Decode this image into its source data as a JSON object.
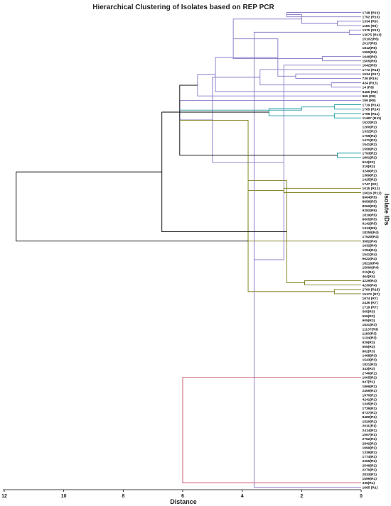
{
  "chart_data": {
    "type": "dendrogram",
    "title": "Hierarchical Clustering of Isolates based on REP PCR",
    "xlabel": "Distance",
    "ylabel": "Isolate IDs",
    "xlim": [
      12,
      0
    ],
    "xticks": [
      12,
      10,
      8,
      6,
      4,
      2,
      0
    ],
    "orientation": "left",
    "colors": {
      "purple": "#8878c8",
      "teal": "#1a9aa0",
      "olive": "#7a7a18",
      "red": "#c85068",
      "black": "#000000"
    },
    "leaves": [
      "1748 (R10)",
      "1792 (R10)",
      "1334 (R9)",
      "1155 (R9)",
      "1375 (R13)",
      "13075 (R13)",
      "15102(R6)",
      "2017(R6)",
      "1812(R6)",
      "1550(R6)",
      "1946(R6)",
      "1505(R6)",
      "1642(R6)",
      "1772 (R18)",
      "1534 (R17)",
      "736 (R16)",
      "434 (R15)",
      "14 (R8)",
      "9465 (R8)",
      "965 (R8)",
      "199 (R8)",
      "1719 (R14)",
      "1765 (R14)",
      "1795 (R11)",
      "11487 (R11)",
      "1522(R2)",
      "1260(R2)",
      "1332(R2)",
      "1759(R2)",
      "1471(R2)",
      "1541(R2)",
      "1556(R2)",
      "1793(R2)",
      "1861(R2)",
      "924(R2)",
      "319(R2)",
      "3249(R2)",
      "1389(R2)",
      "1425(R2)",
      "1747 (R2)",
      "1015 (R12)",
      "10616 (R12)",
      "8964(R5)",
      "8656(R5)",
      "8060(R5)",
      "9282(R5)",
      "1819(R5)",
      "8605(R5)",
      "9142(R5)",
      "1313(R5)",
      "18258(R4)",
      "17528(R4)",
      "3582(R4)",
      "1632(R4)",
      "1284(R4)",
      "1541(R4)",
      "9622(R4)",
      "18218(R4)",
      "15006(R4)",
      "211(R4)",
      "464(R4)",
      "4229(R4)",
      "4230(R4)",
      "2760 (R18)",
      "15172 (R7)",
      "1674 (R7)",
      "2439 (R7)",
      "1718 (R7)",
      "505(R3)",
      "556(R3)",
      "905(R3)",
      "1831(R3)",
      "11137(R3)",
      "1160(R3)",
      "1134(R3)",
      "929(R3)",
      "555(R3)",
      "862(R3)",
      "1468(R3)",
      "1543(R3)",
      "1821(R3)",
      "343(R3)",
      "2746(R1)",
      "1005(R1)",
      "947(R1)",
      "1866(R1)",
      "2459(R1)",
      "1970(R1)",
      "4241(R1)",
      "1345(R1)",
      "1739(R1)",
      "8737(R1)",
      "8480(R1)",
      "1520(R1)",
      "2011(R1)",
      "2414(R1)",
      "1557(R1)",
      "2752(R1)",
      "2842(R1)",
      "1999(R1)",
      "1339(R1)",
      "1774(R1)",
      "2256(R1)",
      "2549(R1)",
      "2279(R1)",
      "2833(R1)",
      "1599(R1)",
      "335(R1)",
      "1665 (R1)"
    ],
    "links": [
      {
        "left": 0,
        "right": 1,
        "distance": 2.5,
        "color": "purple"
      },
      {
        "left": 2,
        "right": 3,
        "distance": 0.8,
        "color": "purple"
      },
      {
        "left": 4,
        "right": 5,
        "distance": 0.4,
        "color": "purple"
      },
      {
        "left": 109,
        "right": 110,
        "distance": 2.0,
        "color": "purple"
      },
      {
        "left": 111,
        "right": 108,
        "distance": 3.6,
        "color": "purple"
      },
      {
        "left": 10,
        "right": 11,
        "distance": 1.3,
        "color": "purple"
      },
      {
        "left": 12,
        "right": 113,
        "distance": 2.6,
        "color": "purple"
      },
      {
        "left": 112,
        "right": 114,
        "distance": 4.3,
        "color": "purple"
      },
      {
        "left": 14,
        "right": 15,
        "distance": 2.2,
        "color": "purple"
      },
      {
        "left": 16,
        "right": 17,
        "distance": 1.0,
        "color": "purple"
      },
      {
        "left": 116,
        "right": 117,
        "distance": 2.8,
        "color": "purple"
      },
      {
        "left": 13,
        "right": 118,
        "distance": 3.4,
        "color": "purple"
      },
      {
        "left": 119,
        "right": 18,
        "distance": 4.9,
        "color": "purple"
      },
      {
        "left": 115,
        "right": 120,
        "distance": 5.0,
        "color": "purple"
      },
      {
        "left": 121,
        "right": 19,
        "distance": 5.5,
        "color": "purple"
      },
      {
        "left": 122,
        "right": 20,
        "distance": 6.1,
        "color": "purple"
      },
      {
        "left": 21,
        "right": 22,
        "distance": 0.9,
        "color": "teal"
      },
      {
        "left": 23,
        "right": 24,
        "distance": 0.9,
        "color": "teal"
      },
      {
        "left": 124,
        "right": 125,
        "distance": 2.0,
        "color": "teal"
      },
      {
        "left": 32,
        "right": 33,
        "distance": 0.8,
        "color": "teal"
      },
      {
        "left": 126,
        "right": 127,
        "distance": 3.1,
        "color": "teal"
      },
      {
        "left": 123,
        "right": 128,
        "distance": 6.1,
        "color": "black"
      },
      {
        "left": 40,
        "right": 41,
        "distance": 2.6,
        "color": "olive"
      },
      {
        "left": 130,
        "right": 52,
        "distance": 3.8,
        "color": "olive"
      },
      {
        "left": 61,
        "right": 62,
        "distance": 1.9,
        "color": "olive"
      },
      {
        "left": 63,
        "right": 64,
        "distance": 0.9,
        "color": "olive"
      },
      {
        "left": 132,
        "right": 133,
        "distance": 2.5,
        "color": "olive"
      },
      {
        "left": 131,
        "right": 134,
        "distance": 3.8,
        "color": "olive"
      },
      {
        "left": 129,
        "right": 135,
        "distance": 6.7,
        "color": "black"
      },
      {
        "left": 83,
        "right": 107,
        "distance": 6.0,
        "color": "red"
      },
      {
        "left": 136,
        "right": 137,
        "distance": 11.6,
        "color": "black"
      }
    ]
  }
}
